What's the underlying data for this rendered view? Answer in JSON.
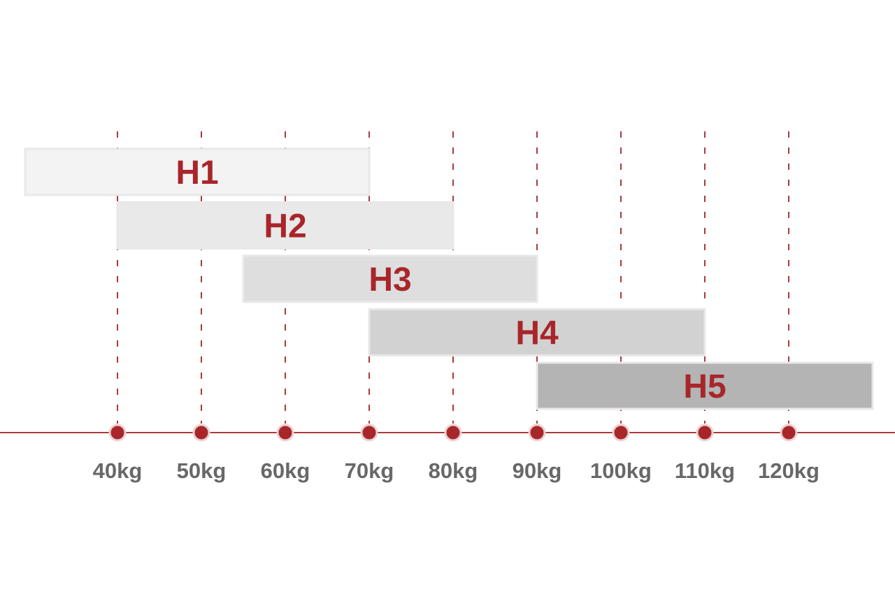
{
  "chart_data": {
    "type": "bar",
    "orientation": "horizontal-range",
    "title": "",
    "xlabel": "",
    "ylabel": "",
    "unit": "kg",
    "ticks": [
      40,
      50,
      60,
      70,
      80,
      90,
      100,
      110,
      120
    ],
    "tick_labels": [
      "40kg",
      "50kg",
      "60kg",
      "70kg",
      "80kg",
      "90kg",
      "100kg",
      "110kg",
      "120kg"
    ],
    "xlim": [
      29,
      130
    ],
    "grid": "vertical dashed at ticks",
    "series": [
      {
        "label": "H1",
        "start": 29,
        "end": 70,
        "color": "#f3f3f3"
      },
      {
        "label": "H2",
        "start": 40,
        "end": 80,
        "color": "#e9e9e9"
      },
      {
        "label": "H3",
        "start": 55,
        "end": 90,
        "color": "#dedede"
      },
      {
        "label": "H4",
        "start": 70,
        "end": 110,
        "color": "#d2d2d2"
      },
      {
        "label": "H5",
        "start": 90,
        "end": 130,
        "color": "#b4b4b4"
      }
    ],
    "colors": {
      "accent": "#a8262a",
      "axis": "#a83a3a",
      "tick_text": "#686868",
      "bar_border": "#e8e8e8"
    }
  }
}
